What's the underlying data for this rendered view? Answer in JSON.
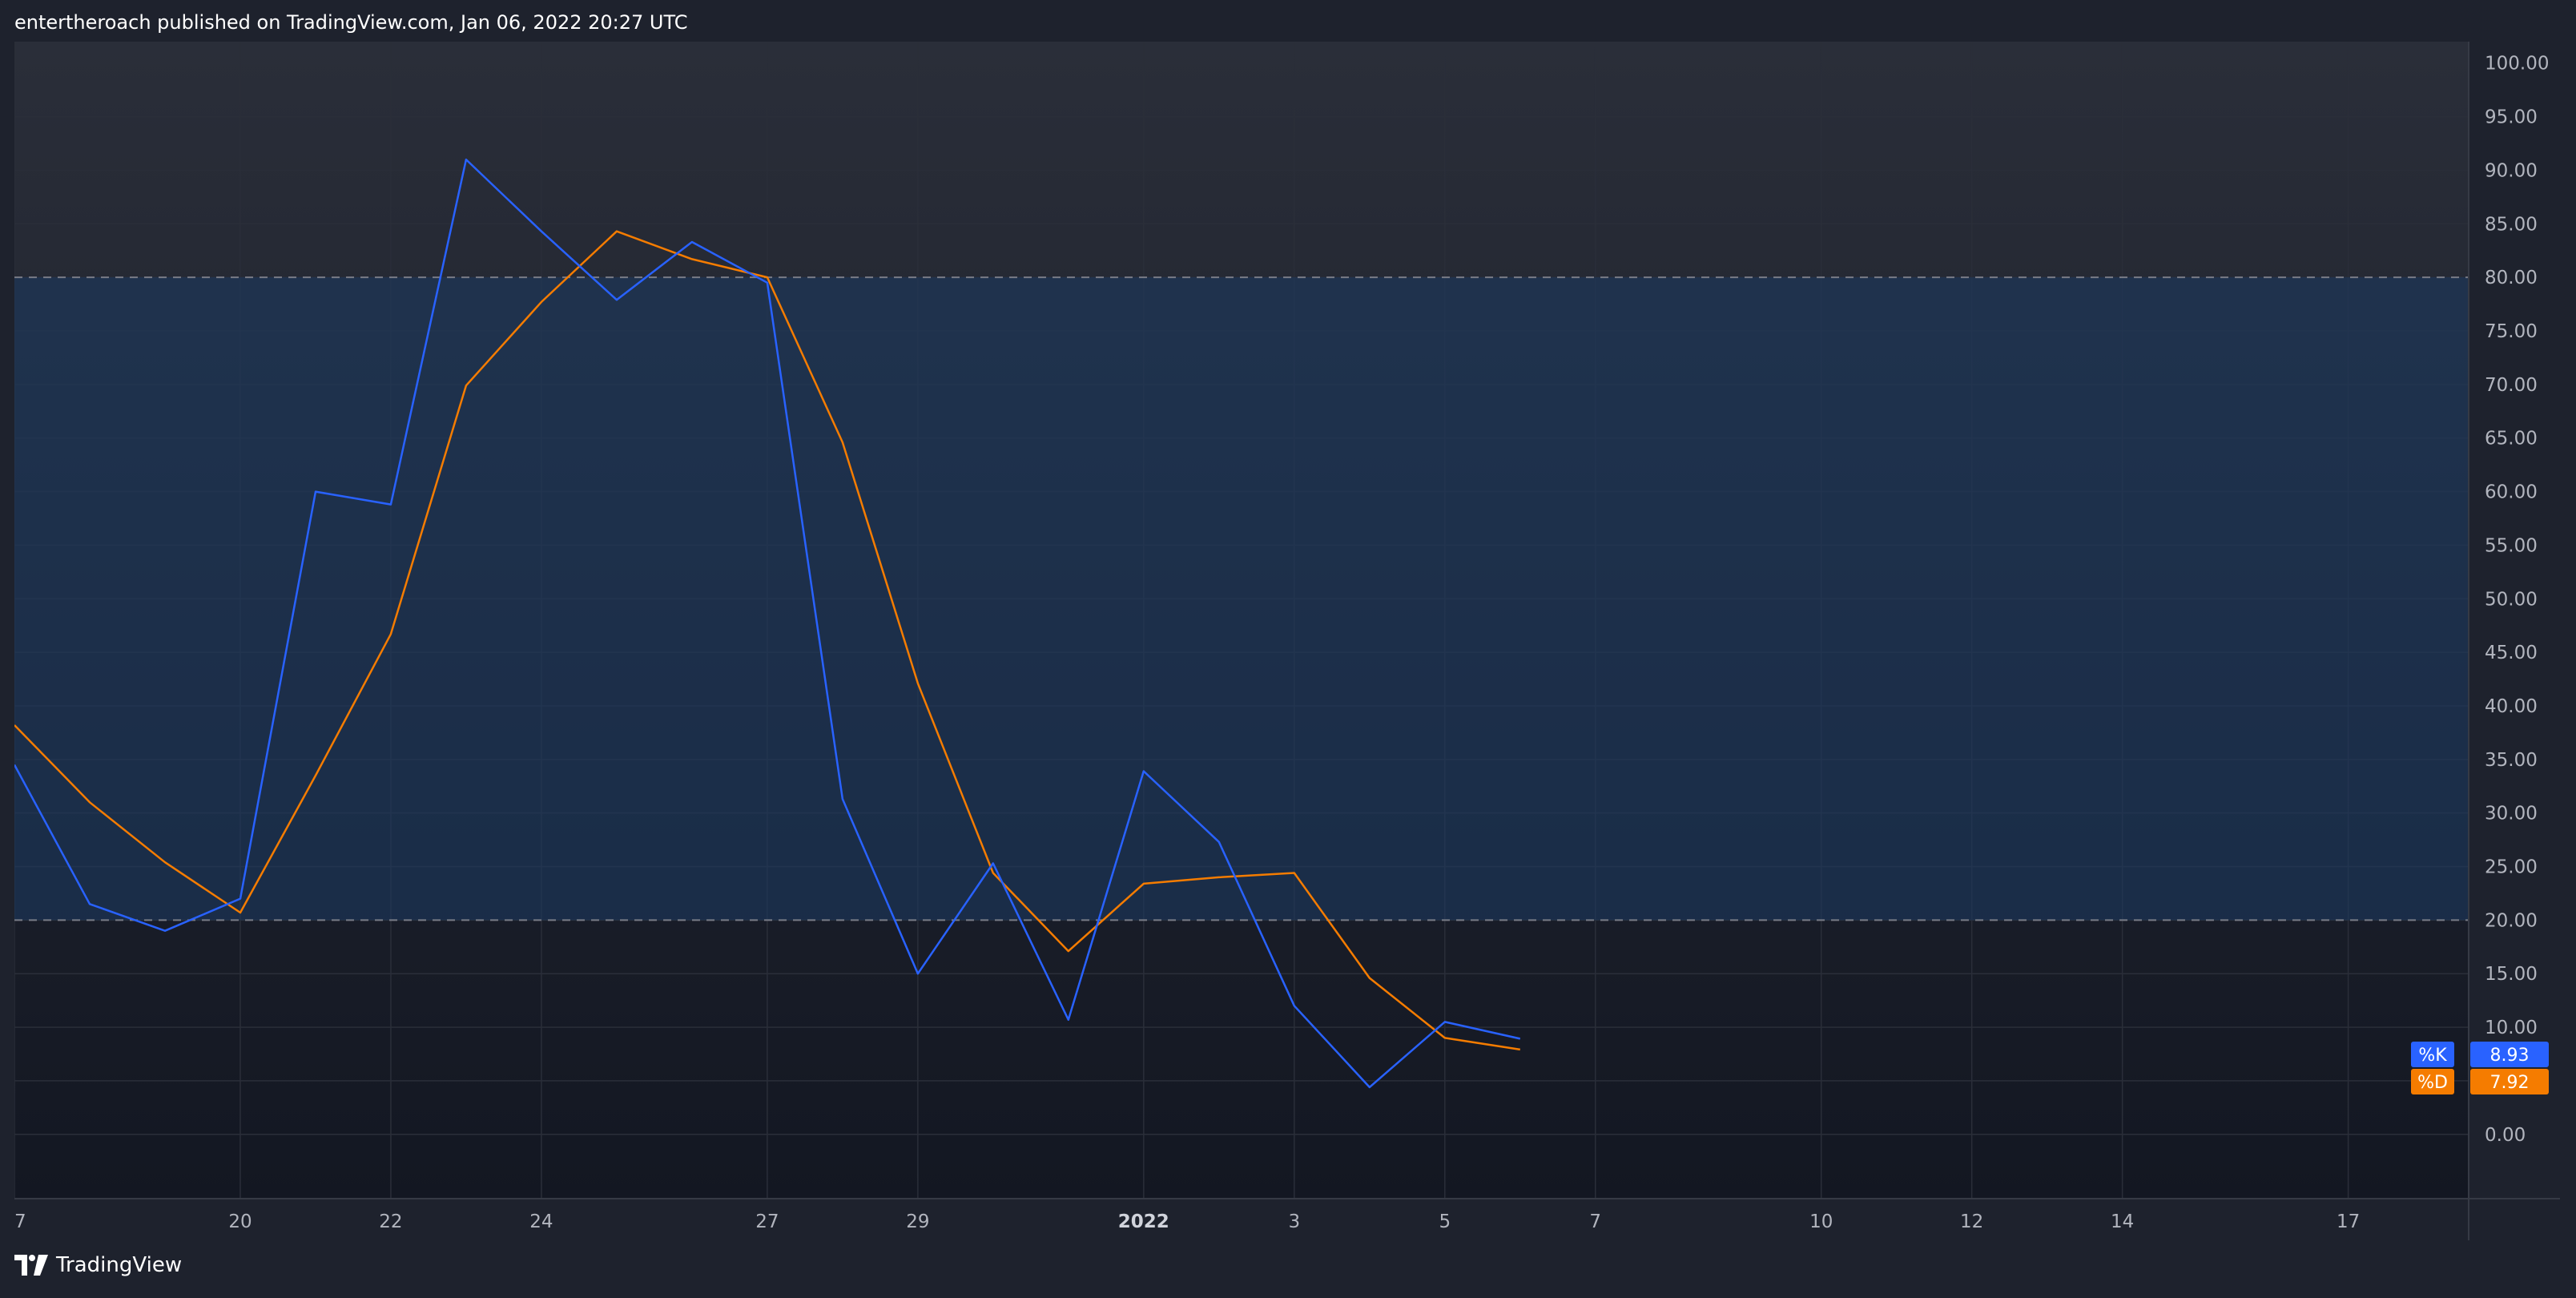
{
  "header": {
    "publish_line": "entertheroach published on TradingView.com, Jan 06, 2022 20:27 UTC"
  },
  "footer": {
    "brand_name": "TradingView",
    "logo_icon": "tradingview-logo-icon"
  },
  "colors": {
    "background": "#1e222d",
    "k_line": "#2962ff",
    "d_line": "#f57c00",
    "band_fill": "#1c3a63",
    "band_border": "#787b86",
    "grid": "#2a2e39",
    "axis_text": "#b2b5be"
  },
  "chart_data": {
    "type": "line",
    "title": "",
    "xlabel": "",
    "ylabel": "",
    "ylim": [
      -6,
      102
    ],
    "y_ticks": [
      "100.00",
      "95.00",
      "90.00",
      "85.00",
      "80.00",
      "75.00",
      "70.00",
      "65.00",
      "60.00",
      "55.00",
      "50.00",
      "45.00",
      "40.00",
      "35.00",
      "30.00",
      "25.00",
      "20.00",
      "15.00",
      "10.00",
      "5.00",
      "0.00"
    ],
    "y_tick_values": [
      100,
      95,
      90,
      85,
      80,
      75,
      70,
      65,
      60,
      55,
      50,
      45,
      40,
      35,
      30,
      25,
      20,
      15,
      10,
      5,
      0
    ],
    "x_ticks": [
      {
        "label": "7",
        "day": 0,
        "bold": false
      },
      {
        "label": "20",
        "day": 3,
        "bold": false
      },
      {
        "label": "22",
        "day": 5,
        "bold": false
      },
      {
        "label": "24",
        "day": 7,
        "bold": false
      },
      {
        "label": "27",
        "day": 10,
        "bold": false
      },
      {
        "label": "29",
        "day": 12,
        "bold": false
      },
      {
        "label": "2022",
        "day": 15,
        "bold": true
      },
      {
        "label": "3",
        "day": 17,
        "bold": false
      },
      {
        "label": "5",
        "day": 19,
        "bold": false
      },
      {
        "label": "7",
        "day": 21,
        "bold": false
      },
      {
        "label": "10",
        "day": 24,
        "bold": false
      },
      {
        "label": "12",
        "day": 26,
        "bold": false
      },
      {
        "label": "14",
        "day": 28,
        "bold": false
      },
      {
        "label": "17",
        "day": 31,
        "bold": false
      }
    ],
    "x_range": [
      0,
      32.6
    ],
    "band": {
      "upper": 80,
      "lower": 20
    },
    "grid": true,
    "series": [
      {
        "name": "%K",
        "color": "#2962ff",
        "x": [
          0,
          1,
          2,
          3,
          4,
          5,
          6,
          7,
          8,
          9,
          10,
          11,
          12,
          13,
          14,
          15,
          16,
          17,
          18,
          19,
          20
        ],
        "values": [
          34.5,
          21.5,
          19.0,
          22.0,
          60.0,
          58.8,
          91.0,
          84.3,
          77.9,
          83.3,
          79.5,
          31.3,
          15.0,
          25.3,
          10.7,
          33.9,
          27.3,
          12.0,
          4.4,
          10.5,
          8.93
        ]
      },
      {
        "name": "%D",
        "color": "#f57c00",
        "x": [
          0,
          1,
          2,
          3,
          4,
          5,
          6,
          7,
          8,
          9,
          10,
          11,
          12,
          13,
          14,
          15,
          16,
          17,
          18,
          19,
          20
        ],
        "values": [
          38.2,
          31.0,
          25.4,
          20.7,
          33.5,
          46.7,
          69.9,
          77.7,
          84.3,
          81.7,
          80.0,
          64.6,
          42.1,
          24.4,
          17.1,
          23.4,
          24.0,
          24.4,
          14.6,
          9.0,
          7.92
        ]
      }
    ],
    "last_value_labels": [
      {
        "series": "%K",
        "value": "8.93",
        "color": "#2962ff"
      },
      {
        "series": "%D",
        "value": "7.92",
        "color": "#f57c00"
      }
    ]
  }
}
